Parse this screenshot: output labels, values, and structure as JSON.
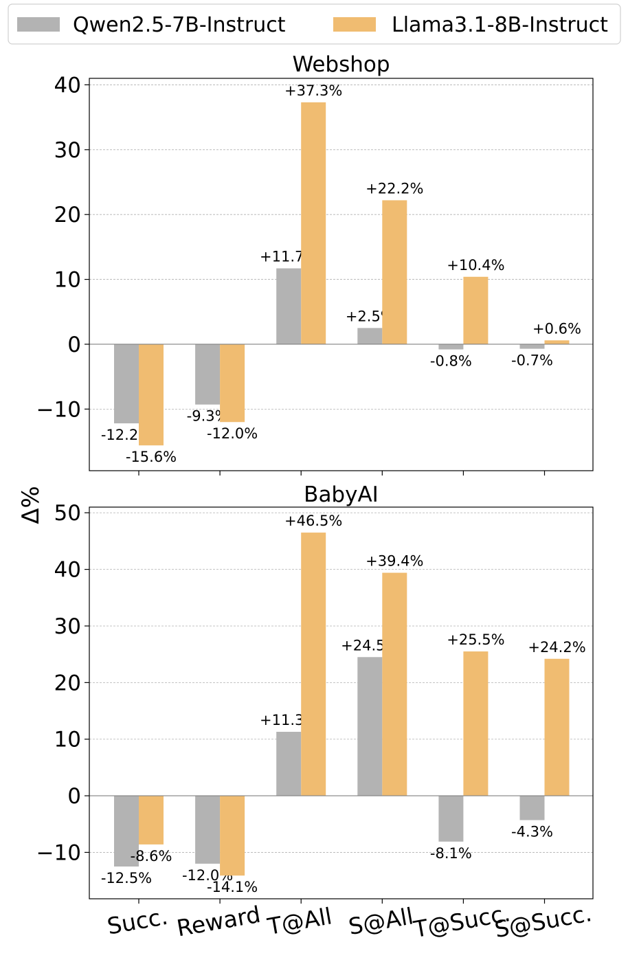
{
  "legend": {
    "entries": [
      {
        "label": "Qwen2.5-7B-Instruct",
        "color": "#b3b3b3"
      },
      {
        "label": "Llama3.1-8B-Instruct",
        "color": "#f0bc71"
      }
    ]
  },
  "ylabel": "Δ%",
  "chart_data": [
    {
      "type": "bar",
      "title": "Webshop",
      "categories": [
        "Succ.",
        "Reward",
        "T@All",
        "S@All",
        "T@Succ.",
        "S@Succ."
      ],
      "ylim": [
        -19.5,
        41
      ],
      "yticks": [
        40,
        30,
        20,
        10,
        0,
        -10
      ],
      "ytick_labels": [
        "40",
        "30",
        "20",
        "10",
        "0",
        "−10"
      ],
      "grid": true,
      "series": [
        {
          "name": "Qwen2.5-7B-Instruct",
          "color": "#b3b3b3",
          "values": [
            -12.2,
            -9.3,
            11.7,
            2.5,
            -0.8,
            -0.7
          ],
          "labels": [
            "-12.2%",
            "-9.3%",
            "+11.7%",
            "+2.5%",
            "-0.8%",
            "-0.7%"
          ]
        },
        {
          "name": "Llama3.1-8B-Instruct",
          "color": "#f0bc71",
          "values": [
            -15.6,
            -12.0,
            37.3,
            22.2,
            10.4,
            0.6
          ],
          "labels": [
            "-15.6%",
            "-12.0%",
            "+37.3%",
            "+22.2%",
            "+10.4%",
            "+0.6%"
          ]
        }
      ]
    },
    {
      "type": "bar",
      "title": "BabyAI",
      "categories": [
        "Succ.",
        "Reward",
        "T@All",
        "S@All",
        "T@Succ.",
        "S@Succ."
      ],
      "ylim": [
        -18.2,
        51
      ],
      "yticks": [
        50,
        40,
        30,
        20,
        10,
        0,
        -10
      ],
      "ytick_labels": [
        "50",
        "40",
        "30",
        "20",
        "10",
        "0",
        "−10"
      ],
      "grid": true,
      "series": [
        {
          "name": "Qwen2.5-7B-Instruct",
          "color": "#b3b3b3",
          "values": [
            -12.5,
            -12.0,
            11.3,
            24.5,
            -8.1,
            -4.3
          ],
          "labels": [
            "-12.5%",
            "-12.0%",
            "+11.3%",
            "+24.5%",
            "-8.1%",
            "-4.3%"
          ]
        },
        {
          "name": "Llama3.1-8B-Instruct",
          "color": "#f0bc71",
          "values": [
            -8.6,
            -14.1,
            46.5,
            39.4,
            25.5,
            24.2
          ],
          "labels": [
            "-8.6%",
            "-14.1%",
            "+46.5%",
            "+39.4%",
            "+25.5%",
            "+24.2%"
          ]
        }
      ]
    }
  ]
}
